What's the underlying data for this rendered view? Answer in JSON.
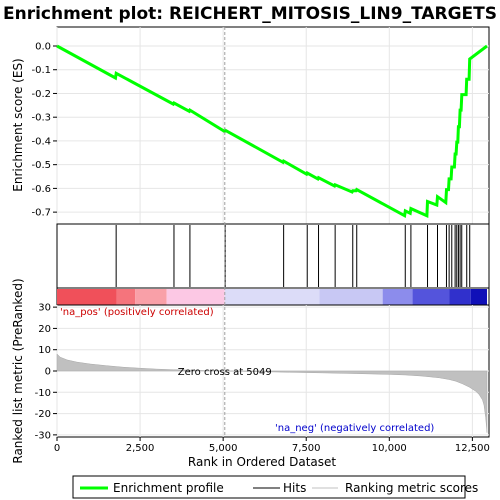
{
  "chart_data": {
    "type": "line",
    "title": "Enrichment plot: REICHERT_MITOSIS_LIN9_TARGETS",
    "xlabel": "Rank in Ordered Dataset",
    "es_ylabel": "Enrichment score (ES)",
    "metric_ylabel": "Ranked list metric (PreRanked)",
    "xlim": [
      0,
      13000
    ],
    "es_ylim": [
      -0.75,
      0.08
    ],
    "metric_ylim": [
      -31,
      31
    ],
    "x_ticks": [
      0,
      2500,
      5000,
      7500,
      10000,
      12500
    ],
    "x_tick_labels": [
      "0",
      "2,500",
      "5,000",
      "7,500",
      "10,000",
      "12,500"
    ],
    "es_ticks": [
      0.0,
      -0.1,
      -0.2,
      -0.3,
      -0.4,
      -0.5,
      -0.6,
      -0.7
    ],
    "es_tick_labels": [
      "0.0",
      "-0.1",
      "-0.2",
      "-0.3",
      "-0.4",
      "-0.5",
      "-0.6",
      "-0.7"
    ],
    "metric_ticks": [
      30,
      20,
      10,
      0,
      -10,
      -20,
      -30
    ],
    "metric_tick_labels": [
      "30",
      "20",
      "10",
      "0",
      "-10",
      "-20",
      "-30"
    ],
    "hits": [
      1780,
      3520,
      4000,
      5060,
      6820,
      7530,
      7870,
      8370,
      8900,
      9020,
      10480,
      10650,
      11150,
      11450,
      11720,
      11800,
      11880,
      11980,
      12030,
      12080,
      12130,
      12180,
      12330,
      12420
    ],
    "es_profile": {
      "x": [
        0,
        1760,
        1780,
        3500,
        3520,
        3980,
        4000,
        5040,
        5060,
        6800,
        6820,
        7510,
        7530,
        7850,
        7870,
        8350,
        8370,
        8880,
        8900,
        9000,
        9020,
        10460,
        10480,
        10630,
        10650,
        11130,
        11150,
        11430,
        11450,
        11700,
        11720,
        11780,
        11800,
        11860,
        11880,
        11960,
        11980,
        12010,
        12030,
        12060,
        12080,
        12110,
        12130,
        12160,
        12180,
        12310,
        12330,
        12400,
        12420,
        12940
      ],
      "y": [
        0.0,
        -0.135,
        -0.115,
        -0.245,
        -0.24,
        -0.275,
        -0.27,
        -0.36,
        -0.355,
        -0.49,
        -0.485,
        -0.54,
        -0.535,
        -0.56,
        -0.555,
        -0.59,
        -0.585,
        -0.615,
        -0.61,
        -0.61,
        -0.605,
        -0.715,
        -0.695,
        -0.705,
        -0.685,
        -0.715,
        -0.655,
        -0.67,
        -0.635,
        -0.66,
        -0.605,
        -0.605,
        -0.56,
        -0.56,
        -0.51,
        -0.51,
        -0.455,
        -0.455,
        -0.405,
        -0.405,
        -0.34,
        -0.34,
        -0.27,
        -0.27,
        -0.205,
        -0.205,
        -0.14,
        -0.14,
        -0.055,
        0.0
      ]
    },
    "metric_curve": {
      "x": [
        0,
        100,
        300,
        600,
        1000,
        1500,
        2000,
        2500,
        3000,
        3500,
        4000,
        4500,
        5049,
        6000,
        7000,
        8000,
        9000,
        10000,
        10500,
        11000,
        11500,
        11800,
        12000,
        12200,
        12400,
        12600,
        12700,
        12800,
        12850,
        12900,
        12940
      ],
      "y": [
        8.0,
        6.5,
        5.2,
        4.2,
        3.3,
        2.5,
        1.8,
        1.3,
        0.9,
        0.6,
        0.4,
        0.2,
        0.0,
        -0.3,
        -0.6,
        -0.9,
        -1.2,
        -1.6,
        -1.9,
        -2.4,
        -3.2,
        -4.0,
        -4.8,
        -6.0,
        -7.5,
        -9.5,
        -11.0,
        -13.5,
        -16.0,
        -22.0,
        -29.0
      ]
    },
    "zero_cross": 5049,
    "zero_cross_label": "Zero cross at 5049",
    "pos_label": "'na_pos' (positively correlated)",
    "neg_label": "'na_neg' (negatively correlated)",
    "legend": [
      "Enrichment profile",
      "Hits",
      "Ranking metric scores"
    ],
    "legend_placement": "bottom-center",
    "colors": {
      "profile": "#00ff00",
      "hits": "#000000",
      "metric_fill": "#c0c0c0",
      "pos_text": "#cc0000",
      "neg_text": "#0000cc",
      "zero_cross_line": "#a0a0a0"
    },
    "heatmap_bands": [
      {
        "start": 0,
        "end": 1800,
        "color": "#f0505a"
      },
      {
        "start": 1800,
        "end": 2350,
        "color": "#f5747c"
      },
      {
        "start": 2350,
        "end": 3300,
        "color": "#f9a0a8"
      },
      {
        "start": 3300,
        "end": 5049,
        "color": "#fcc8e4"
      },
      {
        "start": 5049,
        "end": 7900,
        "color": "#dcdcf8"
      },
      {
        "start": 7900,
        "end": 9800,
        "color": "#c8c8f4"
      },
      {
        "start": 9800,
        "end": 10700,
        "color": "#8c8cec"
      },
      {
        "start": 10700,
        "end": 11800,
        "color": "#5454dc"
      },
      {
        "start": 11800,
        "end": 12450,
        "color": "#3030cc"
      },
      {
        "start": 12450,
        "end": 12940,
        "color": "#1010b8"
      }
    ]
  }
}
